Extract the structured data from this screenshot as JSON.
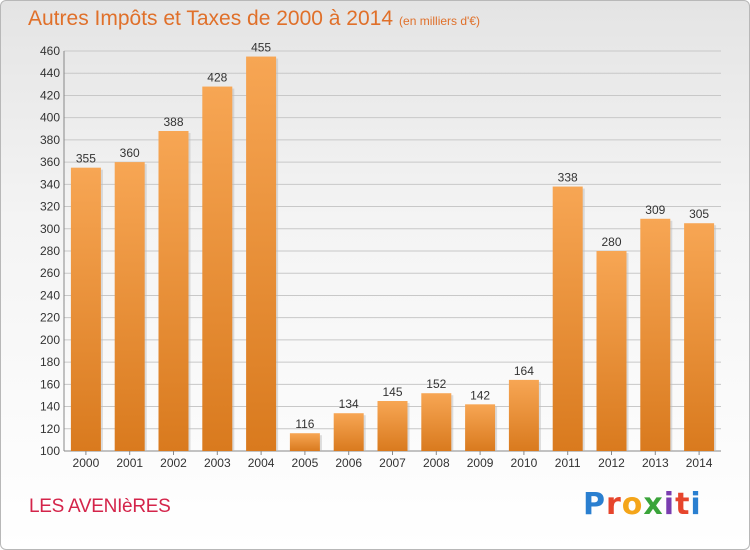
{
  "header": {
    "title": "Autres Impôts et Taxes de 2000 à 2014",
    "unit": "(en milliers d'€)"
  },
  "footer": {
    "commune": "LES AVENIèRES",
    "logo": [
      "P",
      "r",
      "o",
      "x",
      "i",
      "t",
      "i"
    ]
  },
  "colors": {
    "bar_top": "#f7a654",
    "bar_bottom": "#d97a1e",
    "grid": "#c8c8c8",
    "text": "#333333"
  },
  "chart_data": {
    "type": "bar",
    "title": "Autres Impôts et Taxes de 2000 à 2014",
    "categories": [
      "2000",
      "2001",
      "2002",
      "2003",
      "2004",
      "2005",
      "2006",
      "2007",
      "2008",
      "2009",
      "2010",
      "2011",
      "2012",
      "2013",
      "2014"
    ],
    "values": [
      355,
      360,
      388,
      428,
      455,
      116,
      134,
      145,
      152,
      142,
      164,
      338,
      280,
      309,
      305
    ],
    "yticks": [
      "100",
      "120",
      "140",
      "160",
      "180",
      "200",
      "220",
      "240",
      "260",
      "280",
      "300",
      "320",
      "340",
      "360",
      "380",
      "400",
      "420",
      "440",
      "460"
    ],
    "ylim": [
      100,
      460
    ],
    "grid": true,
    "xlabel": "",
    "ylabel": ""
  }
}
